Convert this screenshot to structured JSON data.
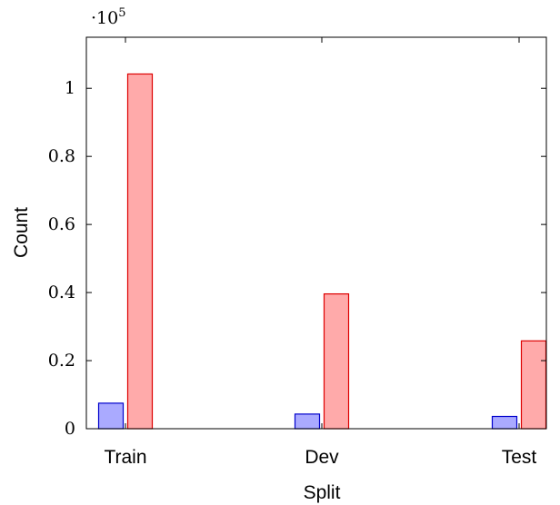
{
  "chart_data": {
    "type": "bar",
    "categories": [
      "Train",
      "Dev",
      "Test"
    ],
    "series": [
      {
        "color": "#aaaaff",
        "stroke": "#0000cc",
        "values": [
          7500,
          4300,
          3600
        ]
      },
      {
        "color": "#ffaaaa",
        "stroke": "#dd0000",
        "values": [
          104200,
          39600,
          25800
        ]
      }
    ],
    "xlabel": "Split",
    "ylabel": "Count",
    "ylim": [
      0,
      115000
    ],
    "y_scale_base": "10",
    "y_scale_exp": "5",
    "yticks": [
      0,
      20000,
      40000,
      60000,
      80000,
      100000
    ],
    "ytick_labels": [
      "0",
      "0.2",
      "0.4",
      "0.6",
      "0.8",
      "1"
    ],
    "grid": false,
    "legend": "none"
  }
}
